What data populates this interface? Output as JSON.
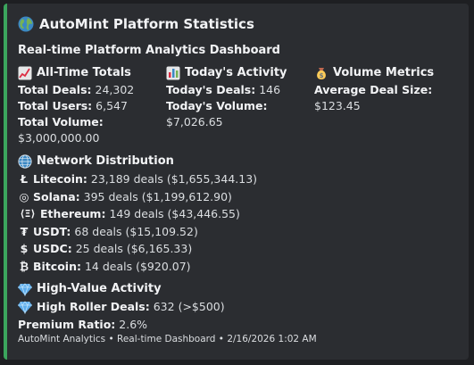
{
  "embed": {
    "accent_color": "#3ba55d",
    "title": "AutoMint Platform Statistics",
    "title_icon": "globe-icon",
    "description": "Real-time Platform Analytics Dashboard",
    "all_time": {
      "name": "All-Time Totals",
      "icon": "chart-increasing-icon",
      "deals_label": "Total Deals:",
      "deals_value": "24,302",
      "users_label": "Total Users:",
      "users_value": "6,547",
      "volume_label": "Total Volume:",
      "volume_value": "$3,000,000.00"
    },
    "today": {
      "name": "Today's Activity",
      "icon": "bar-chart-icon",
      "deals_label": "Today's Deals:",
      "deals_value": "146",
      "volume_label": "Today's Volume:",
      "volume_value": "$7,026.65"
    },
    "volume_metrics": {
      "name": "Volume Metrics",
      "icon": "money-bag-icon",
      "avg_label": "Average Deal Size:",
      "avg_value": "$123.45"
    },
    "network": {
      "name": "Network Distribution",
      "icon": "globe-meridians-icon",
      "items": [
        {
          "glyph": "Ł",
          "label": "Litecoin:",
          "value": "23,189 deals ($1,655,344.13)"
        },
        {
          "glyph": "◎",
          "label": "Solana:",
          "value": "395 deals ($1,199,612.90)"
        },
        {
          "glyph": "⟨Ξ⟩",
          "label": "Ethereum:",
          "value": "149 deals ($43,446.55)"
        },
        {
          "glyph": "₮",
          "label": "USDT:",
          "value": "68 deals ($15,109.52)"
        },
        {
          "glyph": "$",
          "label": "USDC:",
          "value": "25 deals ($6,165.33)"
        },
        {
          "glyph": "₿",
          "label": "Bitcoin:",
          "value": "14 deals ($920.07)"
        }
      ]
    },
    "high_value": {
      "name": "High-Value Activity",
      "icon": "gem-icon",
      "roller_icon": "gem-icon",
      "roller_label": "High Roller Deals:",
      "roller_value": "632 (>$500)",
      "ratio_label": "Premium Ratio:",
      "ratio_value": "2.6%"
    },
    "footer": "AutoMint Analytics • Real-time Dashboard • 2/16/2026 1:02 AM"
  }
}
